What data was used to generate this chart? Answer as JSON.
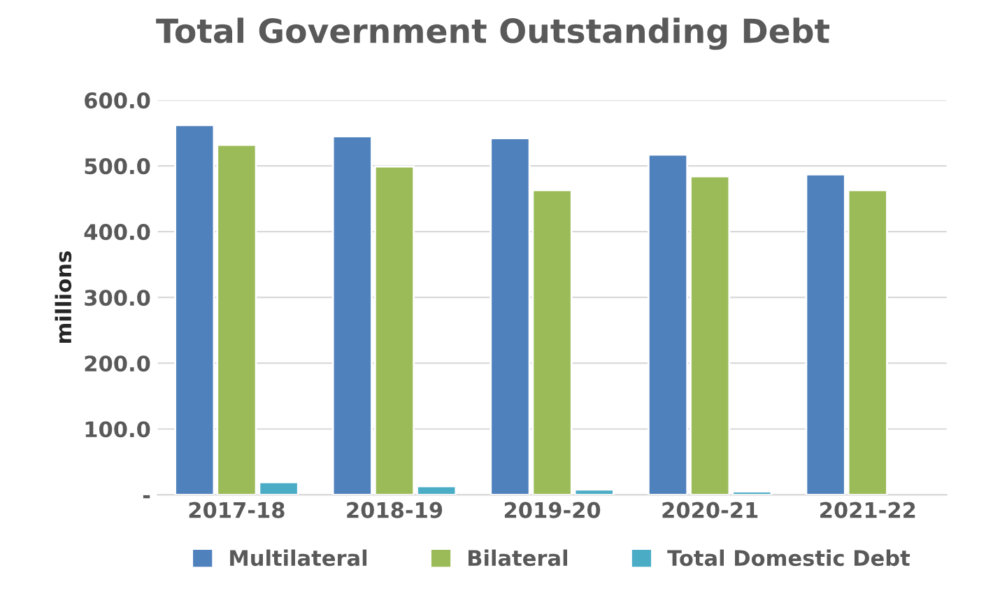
{
  "chart_data": {
    "type": "bar",
    "title": "Total Government Outstanding Debt",
    "ylabel": "millions",
    "categories": [
      "2017-18",
      "2018-19",
      "2019-20",
      "2020-21",
      "2021-22"
    ],
    "series": [
      {
        "name": "Multilateral",
        "color": "#4f81bd",
        "values": [
          562,
          545,
          542,
          517,
          487
        ]
      },
      {
        "name": "Bilateral",
        "color": "#9bbb59",
        "values": [
          532,
          499,
          463,
          484,
          463
        ]
      },
      {
        "name": "Total Domestic Debt",
        "color": "#4bacc6",
        "values": [
          19,
          13,
          8,
          5,
          null
        ]
      }
    ],
    "ylim": [
      0,
      600
    ],
    "yticks": [
      {
        "value": 0,
        "label": "-"
      },
      {
        "value": 100,
        "label": "100.0"
      },
      {
        "value": 200,
        "label": "200.0"
      },
      {
        "value": 300,
        "label": "300.0"
      },
      {
        "value": 400,
        "label": "400.0"
      },
      {
        "value": 500,
        "label": "500.0"
      },
      {
        "value": 600,
        "label": "600.0"
      }
    ],
    "grid": "y",
    "legend": "bottom"
  }
}
